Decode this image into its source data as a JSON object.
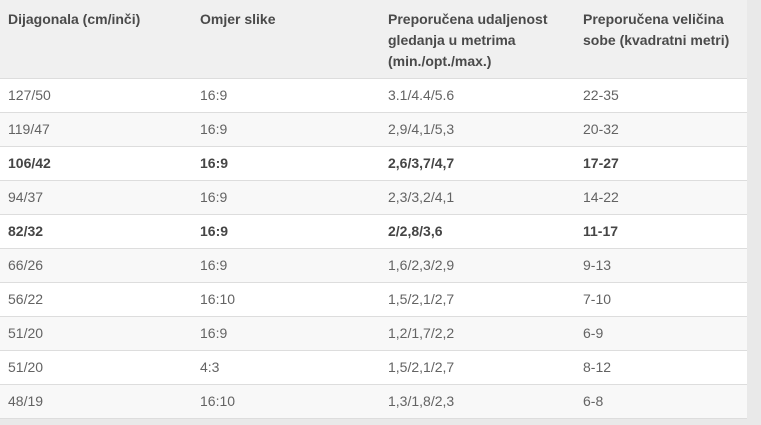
{
  "table": {
    "columns": [
      {
        "label": "Dijagonala (cm/inči)"
      },
      {
        "label": "Omjer slike"
      },
      {
        "label": "Preporučena udaljenost gledanja u metrima (min./opt./max.)"
      },
      {
        "label": "Preporučena veličina sobe (kvadratni metri)"
      }
    ],
    "rows": [
      {
        "cells": [
          "127/50",
          "16:9",
          "3.1/4.4/5.6",
          "22-35"
        ],
        "bold": false
      },
      {
        "cells": [
          "119/47",
          "16:9",
          "2,9/4,1/5,3",
          "20-32"
        ],
        "bold": false
      },
      {
        "cells": [
          "106/42",
          "16:9",
          "2,6/3,7/4,7",
          "17-27"
        ],
        "bold": true
      },
      {
        "cells": [
          "94/37",
          "16:9",
          "2,3/3,2/4,1",
          "14-22"
        ],
        "bold": false
      },
      {
        "cells": [
          "82/32",
          "16:9",
          "2/2,8/3,6",
          "11-17"
        ],
        "bold": true
      },
      {
        "cells": [
          "66/26",
          "16:9",
          "1,6/2,3/2,9",
          "9-13"
        ],
        "bold": false
      },
      {
        "cells": [
          "56/22",
          "16:10",
          "1,5/2,1/2,7",
          "7-10"
        ],
        "bold": false
      },
      {
        "cells": [
          "51/20",
          "16:9",
          "1,2/1,7/2,2",
          "6-9"
        ],
        "bold": false
      },
      {
        "cells": [
          "51/20",
          "4:3",
          "1,5/2,1/2,7",
          "8-12"
        ],
        "bold": false
      },
      {
        "cells": [
          "48/19",
          "16:10",
          "1,3/1,8/2,3",
          "6-8"
        ],
        "bold": false
      }
    ],
    "colors": {
      "page_bg": "#e9e9e9",
      "header_bg": "#f0f0f0",
      "stripe_bg": "#f8f8f8",
      "border": "#dddddd",
      "header_text": "#4a4a4a",
      "cell_text": "#636363",
      "bold_text": "#454545"
    }
  }
}
